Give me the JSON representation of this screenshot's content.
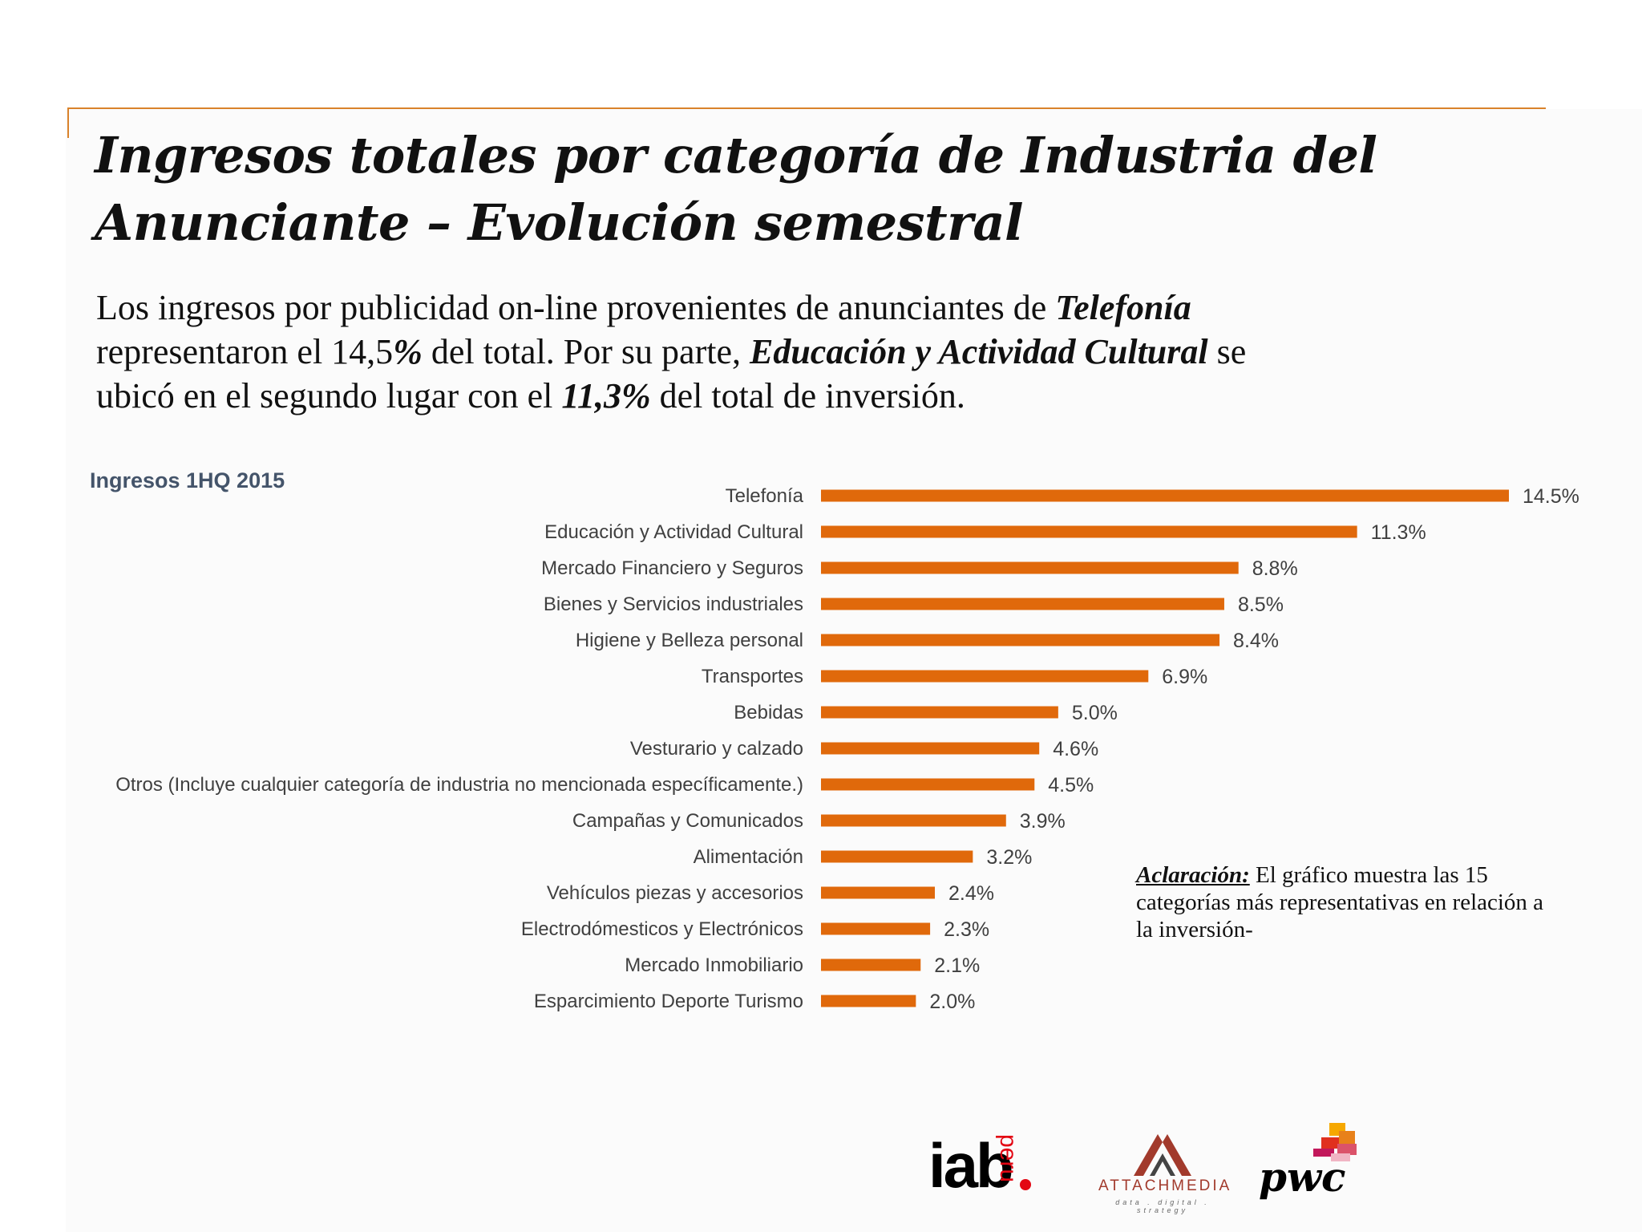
{
  "slide": {
    "title_line1": "Ingresos totales por categoría de Industria del",
    "title_line2": "Anunciante – Evolución semestral",
    "subtitle": {
      "l1_text": "Los ingresos por publicidad on-line provenientes de anunciantes de ",
      "l1_bold": "Telefonía",
      "l2_text1": "representaron el 14,5",
      "l2_pct": "%",
      "l2_text2": " del total. Por su parte, ",
      "l2_bold": "Educación y Actividad Cultural",
      "l2_text3": " se",
      "l3_text1": "ubicó en el segundo lugar con el ",
      "l3_bold": "11,3%",
      "l3_text2": " del total de inversión."
    },
    "section_label": "Ingresos 1HQ 2015",
    "note_label": "Aclaración:",
    "note_text": " El gráfico muestra las 15 categorías más representativas en relación a la inversión-",
    "footer_text": "",
    "accent_color": "#d9822b",
    "bar_color": "#e0690b"
  },
  "logos": {
    "iab_text": "iab",
    "iab_sub": "peru",
    "attach_text": "ATTACHMEDIA",
    "attach_tagline": "data . digital . strategy",
    "pwc_text": "pwc"
  },
  "chart_data": {
    "type": "bar",
    "orientation": "horizontal",
    "title": "Ingresos 1HQ 2015",
    "categories": [
      "Telefonía",
      "Educación y Actividad Cultural",
      "Mercado Financiero y Seguros",
      "Bienes y Servicios industriales",
      "Higiene y Belleza personal",
      "Transportes",
      "Bebidas",
      "Vesturario y calzado",
      "Otros (Incluye cualquier categoría de industria no mencionada específicamente.)",
      "Campañas y Comunicados",
      "Alimentación",
      "Vehículos piezas y accesorios",
      "Electrodómesticos y Electrónicos",
      "Mercado Inmobiliario",
      "Esparcimiento Deporte Turismo"
    ],
    "values": [
      14.5,
      11.3,
      8.8,
      8.5,
      8.4,
      6.9,
      5.0,
      4.6,
      4.5,
      3.9,
      3.2,
      2.4,
      2.3,
      2.1,
      2.0
    ],
    "value_labels": [
      "14.5%",
      "11.3%",
      "8.8%",
      "8.5%",
      "8.4%",
      "6.9%",
      "5.0%",
      "4.6%",
      "4.5%",
      "3.9%",
      "3.2%",
      "2.4%",
      "2.3%",
      "2.1%",
      "2.0%"
    ],
    "unit": "%",
    "xlim": [
      0,
      14.5
    ],
    "grid": false,
    "legend": "none"
  }
}
